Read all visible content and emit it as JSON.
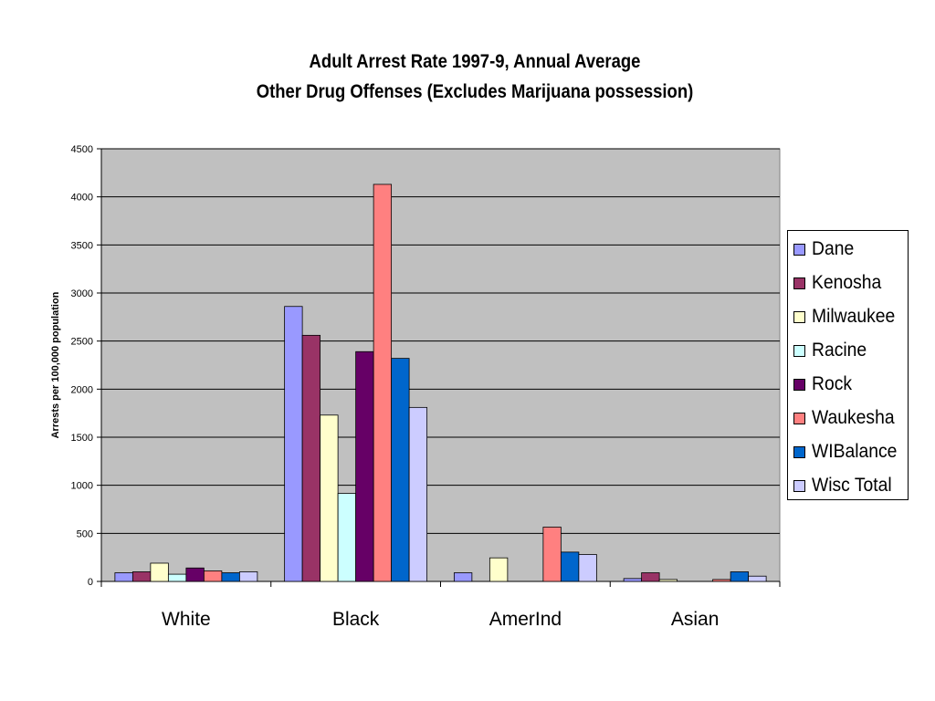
{
  "chart_data": {
    "type": "bar",
    "title": "Adult Arrest Rate 1997-9, Annual Average",
    "subtitle": "Other Drug Offenses (Excludes Marijuana possession)",
    "ylabel": "Arrests per 100,000 population",
    "xlabel": "",
    "ylim": [
      0,
      4500
    ],
    "yticks": [
      "0",
      "500",
      "1000",
      "1500",
      "2000",
      "2500",
      "3000",
      "3500",
      "4000",
      "4500"
    ],
    "grid": true,
    "legend_position": "right",
    "categories": [
      "White",
      "Black",
      "AmerInd",
      "Asian"
    ],
    "series": [
      {
        "name": "Dane",
        "color": "#9999ff",
        "values": [
          90,
          2860,
          90,
          30
        ]
      },
      {
        "name": "Kenosha",
        "color": "#993366",
        "values": [
          100,
          2560,
          0,
          90
        ]
      },
      {
        "name": "Milwaukee",
        "color": "#ffffcc",
        "values": [
          190,
          1730,
          245,
          20
        ]
      },
      {
        "name": "Racine",
        "color": "#ccffff",
        "values": [
          75,
          915,
          0,
          0
        ]
      },
      {
        "name": "Rock",
        "color": "#660066",
        "values": [
          140,
          2390,
          0,
          0
        ]
      },
      {
        "name": "Waukesha",
        "color": "#ff8080",
        "values": [
          110,
          4130,
          565,
          20
        ]
      },
      {
        "name": "WIBalance",
        "color": "#0066cc",
        "values": [
          90,
          2320,
          305,
          100
        ]
      },
      {
        "name": "Wisc Total",
        "color": "#ccccff",
        "values": [
          100,
          1810,
          280,
          55
        ]
      }
    ]
  }
}
